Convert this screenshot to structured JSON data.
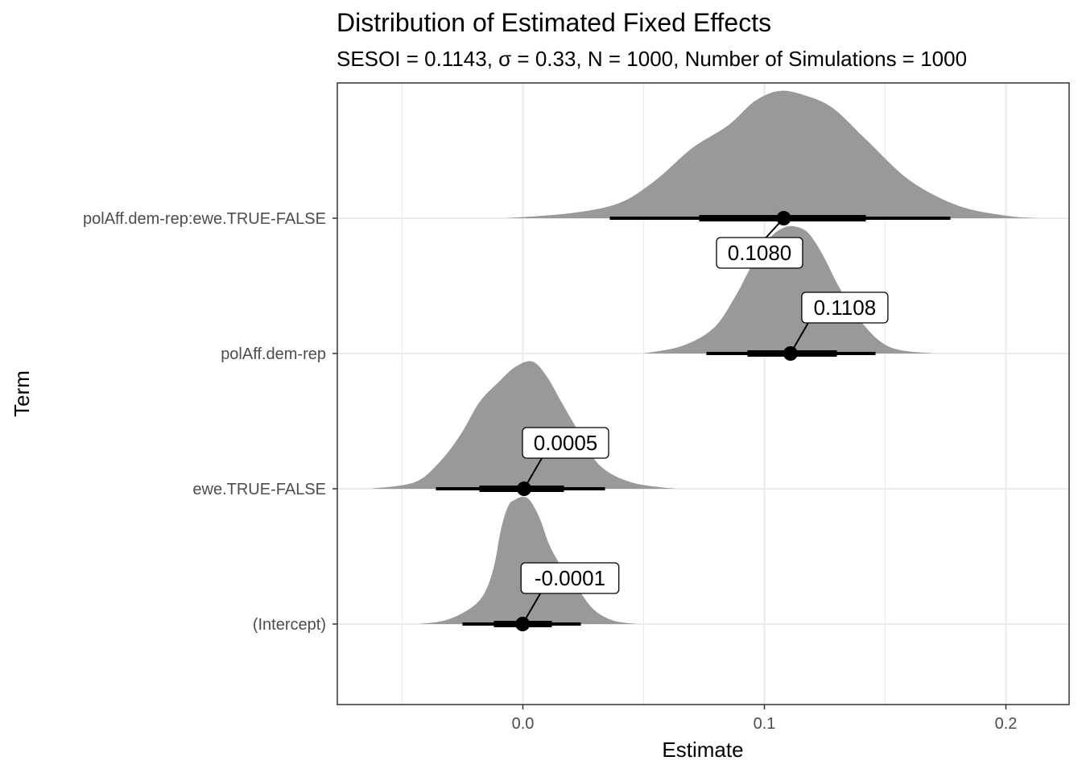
{
  "chart_data": {
    "type": "halfeye",
    "title": "Distribution of Estimated Fixed Effects",
    "subtitle": "SESOI = 0.1143, σ = 0.33, N = 1000, Number of Simulations = 1000",
    "xlabel": "Estimate",
    "ylabel": "Term",
    "xlim": [
      -0.077,
      0.226
    ],
    "x_ticks": [
      "0.0",
      "0.1",
      "0.2"
    ],
    "grid": true,
    "fill_color": "#999999",
    "terms": [
      {
        "term": "(Intercept)",
        "median": -0.0001,
        "label": "-0.0001",
        "interval_66": [
          -0.012,
          0.012
        ],
        "interval_95": [
          -0.025,
          0.024
        ],
        "density_x": [
          -0.043,
          -0.032,
          -0.022,
          -0.016,
          -0.012,
          -0.009,
          -0.006,
          -0.003,
          0.0,
          0.003,
          0.007,
          0.011,
          0.016,
          0.022,
          0.029,
          0.037,
          0.047
        ],
        "density_h": [
          0.0,
          0.03,
          0.12,
          0.24,
          0.45,
          0.75,
          0.93,
          0.98,
          1.0,
          0.97,
          0.83,
          0.62,
          0.45,
          0.3,
          0.12,
          0.03,
          0.0
        ]
      },
      {
        "term": "ewe.TRUE-FALSE",
        "median": 0.0005,
        "label": "0.0005",
        "interval_66": [
          -0.018,
          0.017
        ],
        "interval_95": [
          -0.036,
          0.034
        ],
        "density_x": [
          -0.063,
          -0.045,
          -0.035,
          -0.026,
          -0.018,
          -0.01,
          -0.003,
          0.004,
          0.01,
          0.016,
          0.024,
          0.032,
          0.045,
          0.063
        ],
        "density_h": [
          0.0,
          0.05,
          0.2,
          0.42,
          0.68,
          0.84,
          0.96,
          1.0,
          0.88,
          0.68,
          0.42,
          0.18,
          0.05,
          0.0
        ]
      },
      {
        "term": "polAff.dem-rep",
        "median": 0.1108,
        "label": "0.1108",
        "interval_66": [
          0.093,
          0.13
        ],
        "interval_95": [
          0.076,
          0.146
        ],
        "density_x": [
          0.05,
          0.066,
          0.079,
          0.088,
          0.095,
          0.102,
          0.107,
          0.112,
          0.118,
          0.124,
          0.131,
          0.14,
          0.152,
          0.17
        ],
        "density_h": [
          0.0,
          0.06,
          0.2,
          0.45,
          0.7,
          0.9,
          0.98,
          1.0,
          0.95,
          0.78,
          0.52,
          0.25,
          0.05,
          0.0
        ]
      },
      {
        "term": "polAff.dem-rep:ewe.TRUE-FALSE",
        "median": 0.108,
        "label": "0.1080",
        "interval_66": [
          0.073,
          0.142
        ],
        "interval_95": [
          0.036,
          0.177
        ],
        "density_x": [
          -0.007,
          0.02,
          0.04,
          0.055,
          0.07,
          0.085,
          0.096,
          0.106,
          0.116,
          0.128,
          0.142,
          0.16,
          0.18,
          0.2,
          0.213
        ],
        "density_h": [
          0.0,
          0.04,
          0.12,
          0.3,
          0.55,
          0.73,
          0.92,
          1.0,
          0.97,
          0.87,
          0.62,
          0.3,
          0.1,
          0.02,
          0.0
        ]
      }
    ]
  }
}
